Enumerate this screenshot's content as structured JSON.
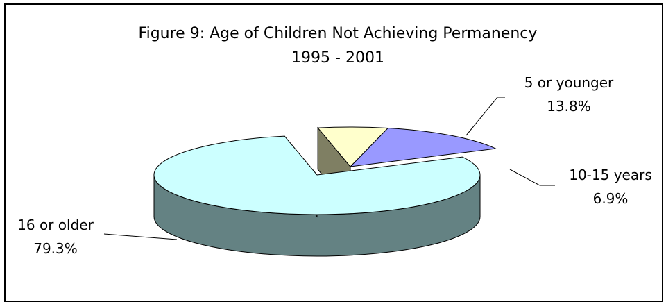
{
  "chart_data": {
    "type": "pie",
    "title": "Figure 9: Age of Children Not Achieving Permanency",
    "subtitle": "1995 - 2001",
    "three_d": true,
    "slices": [
      {
        "label": "5 or younger",
        "value": 13.8,
        "value_label": "13.8%",
        "color": "#9999ff",
        "side_color": "#6b6bb3"
      },
      {
        "label": "10-15 years",
        "value": 6.9,
        "value_label": "6.9%",
        "color": "#ffffcc",
        "side_color": "#7f7f63"
      },
      {
        "label": "16 or older",
        "value": 79.3,
        "value_label": "79.3%",
        "color": "#ccffff",
        "side_color": "#648283"
      }
    ]
  }
}
